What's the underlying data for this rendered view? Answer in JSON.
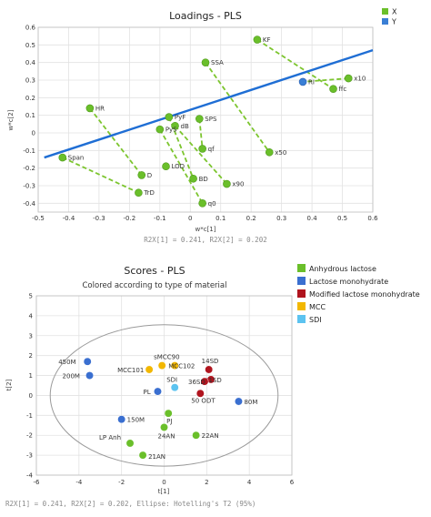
{
  "chart_data": [
    {
      "type": "scatter",
      "title": "Loadings - PLS",
      "xlabel": "w*c[1]",
      "ylabel": "w*c[2]",
      "xlim": [
        -0.5,
        0.6
      ],
      "ylim": [
        -0.45,
        0.6
      ],
      "xticks": [
        "-0.5",
        "-0.4",
        "-0.3",
        "-0.2",
        "-0.1",
        "0",
        "0.1",
        "0.2",
        "0.3",
        "0.4",
        "0.5",
        "0.6"
      ],
      "yticks": [
        "0.6",
        "0.5",
        "0.4",
        "0.3",
        "0.2",
        "0.1",
        "0",
        "-0.1",
        "-0.2",
        "-0.3",
        "-0.4"
      ],
      "footer": "R2X[1] = 0.241, R2X[2] = 0.202",
      "legend": [
        {
          "label": "X",
          "color": "#6abf2a",
          "marker": "square"
        },
        {
          "label": "Y",
          "color": "#3a7fd5",
          "marker": "square"
        }
      ],
      "y_line": {
        "from": [
          -0.48,
          -0.14
        ],
        "to": [
          0.6,
          0.47
        ],
        "color": "#1f6ed4"
      },
      "x_points": [
        {
          "label": "KF",
          "x": 0.22,
          "y": 0.53
        },
        {
          "label": "SSA",
          "x": 0.05,
          "y": 0.4
        },
        {
          "label": "ffc",
          "x": 0.47,
          "y": 0.25
        },
        {
          "label": "x10",
          "x": 0.52,
          "y": 0.31
        },
        {
          "label": "HR",
          "x": -0.33,
          "y": 0.14
        },
        {
          "label": "PyF",
          "x": -0.07,
          "y": 0.09
        },
        {
          "label": "SPS",
          "x": 0.03,
          "y": 0.08
        },
        {
          "label": "dB",
          "x": -0.05,
          "y": 0.04
        },
        {
          "label": "PyS",
          "x": -0.1,
          "y": 0.02
        },
        {
          "label": "qf",
          "x": 0.04,
          "y": -0.09
        },
        {
          "label": "Span",
          "x": -0.42,
          "y": -0.14
        },
        {
          "label": "x50",
          "x": 0.26,
          "y": -0.11
        },
        {
          "label": "D",
          "x": -0.16,
          "y": -0.24
        },
        {
          "label": "LOD",
          "x": -0.08,
          "y": -0.19
        },
        {
          "label": "BD",
          "x": 0.01,
          "y": -0.26
        },
        {
          "label": "x90",
          "x": 0.12,
          "y": -0.29
        },
        {
          "label": "TrD",
          "x": -0.17,
          "y": -0.34
        },
        {
          "label": "q0",
          "x": 0.04,
          "y": -0.4
        }
      ],
      "y_points": [
        {
          "label": "RI",
          "x": 0.37,
          "y": 0.29
        }
      ],
      "dashed_links": [
        [
          "KF",
          "ffc"
        ],
        [
          "SSA",
          "x50"
        ],
        [
          "HR",
          "D"
        ],
        [
          "Span",
          "TrD"
        ],
        [
          "PyF",
          "BD"
        ],
        [
          "SPS",
          "qf"
        ],
        [
          "dB",
          "x90"
        ],
        [
          "PyS",
          "q0"
        ],
        [
          "x10",
          "RI"
        ]
      ]
    },
    {
      "type": "scatter",
      "title": "Scores - PLS",
      "subtitle": "Colored according to type of material",
      "xlabel": "t[1]",
      "ylabel": "t[2]",
      "xlim": [
        -6,
        6
      ],
      "ylim": [
        -4,
        5
      ],
      "xticks": [
        "-6",
        "-4",
        "-2",
        "0",
        "2",
        "4",
        "6"
      ],
      "yticks": [
        "5",
        "4",
        "3",
        "2",
        "1",
        "0",
        "-1",
        "-2",
        "-3",
        "-4"
      ],
      "footer": "R2X[1] = 0.241, R2X[2] = 0.202, Ellipse: Hotelling's T2 (95%)",
      "ellipse": {
        "cx": 0,
        "cy": 0,
        "rx": 5.35,
        "ry": 3.55
      },
      "legend": [
        {
          "label": "Anhydrous lactose",
          "color": "#6abf2a"
        },
        {
          "label": "Lactose monohydrate",
          "color": "#3a6fd0"
        },
        {
          "label": "Modified lactose monohydrate",
          "color": "#b0141e"
        },
        {
          "label": "MCC",
          "color": "#f2b700"
        },
        {
          "label": "SDI",
          "color": "#5cc3f0"
        }
      ],
      "points": [
        {
          "label": "450M",
          "x": -3.6,
          "y": 1.7,
          "group": "Lactose monohydrate"
        },
        {
          "label": "200M",
          "x": -3.5,
          "y": 1.0,
          "group": "Lactose monohydrate"
        },
        {
          "label": "150M",
          "x": -2.0,
          "y": -1.2,
          "group": "Lactose monohydrate"
        },
        {
          "label": "80M",
          "x": 3.5,
          "y": -0.3,
          "group": "Lactose monohydrate"
        },
        {
          "label": "PL",
          "x": -0.3,
          "y": 0.2,
          "group": "Lactose monohydrate"
        },
        {
          "label": "MCC101",
          "x": -0.7,
          "y": 1.3,
          "group": "MCC"
        },
        {
          "label": "sMCC90",
          "x": -0.1,
          "y": 1.5,
          "group": "MCC"
        },
        {
          "label": "MCC102",
          "x": 0.5,
          "y": 1.5,
          "group": "MCC"
        },
        {
          "label": "SDI",
          "x": 0.5,
          "y": 0.4,
          "group": "SDI"
        },
        {
          "label": "14SD",
          "x": 2.1,
          "y": 1.3,
          "group": "Modified lactose monohydrate"
        },
        {
          "label": "11SD",
          "x": 2.2,
          "y": 0.8,
          "group": "Modified lactose monohydrate"
        },
        {
          "label": "36SD",
          "x": 1.9,
          "y": 0.7,
          "group": "Modified lactose monohydrate"
        },
        {
          "label": "50 ODT",
          "x": 1.7,
          "y": 0.1,
          "group": "Modified lactose monohydrate"
        },
        {
          "label": "PJ",
          "x": 0.2,
          "y": -0.9,
          "group": "Anhydrous lactose"
        },
        {
          "label": "24AN",
          "x": 0.0,
          "y": -1.6,
          "group": "Anhydrous lactose"
        },
        {
          "label": "22AN",
          "x": 1.5,
          "y": -2.0,
          "group": "Anhydrous lactose"
        },
        {
          "label": "LP Anh",
          "x": -1.6,
          "y": -2.4,
          "group": "Anhydrous lactose"
        },
        {
          "label": "21AN",
          "x": -1.0,
          "y": -3.0,
          "group": "Anhydrous lactose"
        }
      ]
    }
  ]
}
